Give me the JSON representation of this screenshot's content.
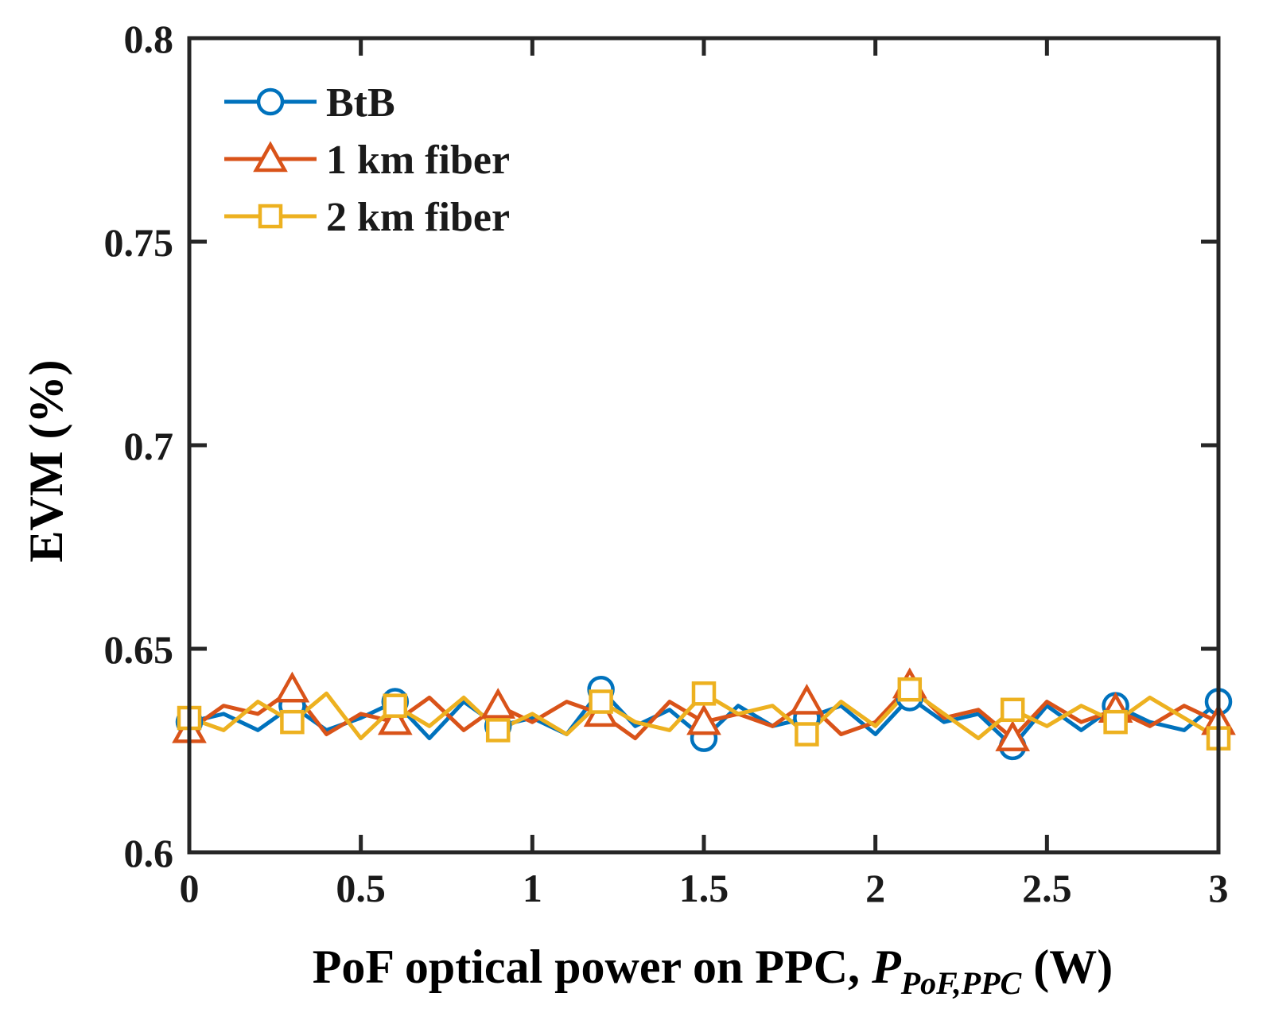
{
  "chart_data": {
    "type": "line",
    "xlabel": {
      "main": "PoF optical power on PPC, ",
      "symbol": "P",
      "subscript": "PoF,PPC",
      "unit": " (W)"
    },
    "ylabel": "EVM (%)",
    "xlim": [
      0,
      3
    ],
    "ylim": [
      0.6,
      0.8
    ],
    "xticks": [
      0,
      0.5,
      1,
      1.5,
      2,
      2.5,
      3
    ],
    "xtick_labels": [
      "0",
      "0.5",
      "1",
      "1.5",
      "2",
      "2.5",
      "3"
    ],
    "yticks": [
      0.6,
      0.65,
      0.7,
      0.75,
      0.8
    ],
    "ytick_labels": [
      "0.6",
      "0.65",
      "0.7",
      "0.75",
      "0.8"
    ],
    "grid": false,
    "legend": "top-left",
    "x": [
      0,
      0.1,
      0.2,
      0.3,
      0.4,
      0.5,
      0.6,
      0.7,
      0.8,
      0.9,
      1.0,
      1.1,
      1.2,
      1.3,
      1.4,
      1.5,
      1.6,
      1.7,
      1.8,
      1.9,
      2.0,
      2.1,
      2.2,
      2.3,
      2.4,
      2.5,
      2.6,
      2.7,
      2.8,
      2.9,
      3.0
    ],
    "series": [
      {
        "name": "BtB",
        "color": "#0072BD",
        "marker": "circle",
        "marker_every": 3,
        "values": [
          0.632,
          0.634,
          0.63,
          0.636,
          0.63,
          0.633,
          0.637,
          0.628,
          0.637,
          0.631,
          0.633,
          0.629,
          0.64,
          0.631,
          0.635,
          0.628,
          0.636,
          0.631,
          0.633,
          0.636,
          0.629,
          0.638,
          0.632,
          0.634,
          0.626,
          0.636,
          0.63,
          0.636,
          0.632,
          0.63,
          0.637
        ]
      },
      {
        "name": "1 km fiber",
        "color": "#D95319",
        "marker": "triangle",
        "marker_every": 3,
        "values": [
          0.63,
          0.636,
          0.634,
          0.64,
          0.629,
          0.634,
          0.632,
          0.638,
          0.63,
          0.636,
          0.632,
          0.637,
          0.634,
          0.628,
          0.637,
          0.632,
          0.634,
          0.631,
          0.637,
          0.629,
          0.632,
          0.641,
          0.633,
          0.635,
          0.628,
          0.637,
          0.632,
          0.635,
          0.631,
          0.636,
          0.632
        ]
      },
      {
        "name": "2 km fiber",
        "color": "#EDB120",
        "marker": "square",
        "marker_every": 3,
        "values": [
          0.633,
          0.63,
          0.637,
          0.632,
          0.639,
          0.628,
          0.636,
          0.631,
          0.638,
          0.63,
          0.634,
          0.629,
          0.637,
          0.632,
          0.63,
          0.639,
          0.634,
          0.636,
          0.629,
          0.637,
          0.631,
          0.64,
          0.634,
          0.628,
          0.635,
          0.631,
          0.636,
          0.632,
          0.638,
          0.633,
          0.628
        ]
      }
    ]
  }
}
